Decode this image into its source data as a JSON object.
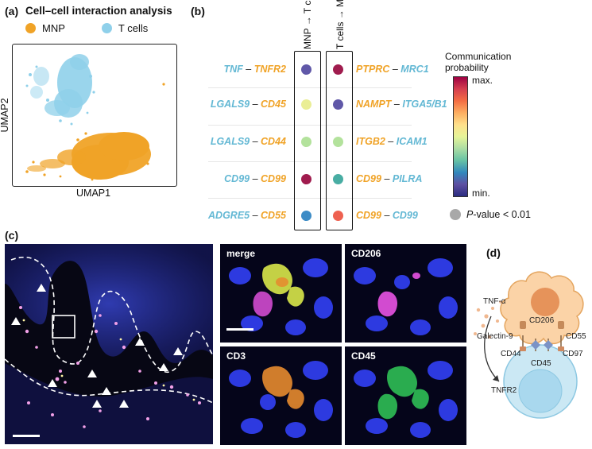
{
  "panel_a": {
    "letter": "(a)",
    "title": "Cell–cell interaction analysis",
    "legend": [
      {
        "label": "MNP",
        "color": "#f0a327"
      },
      {
        "label": "T cells",
        "color": "#8fd0ea"
      }
    ],
    "xlabel": "UMAP1",
    "ylabel": "UMAP2"
  },
  "panel_b": {
    "letter": "(b)",
    "columns": [
      "MNP → T cells",
      "T cells → MNP"
    ],
    "rows_left": [
      {
        "ligand": "TNF",
        "receptor": "TNFR2"
      },
      {
        "ligand": "LGALS9",
        "receptor": "CD45"
      },
      {
        "ligand": "LGALS9",
        "receptor": "CD44"
      },
      {
        "ligand": "CD99",
        "receptor": "CD99"
      },
      {
        "ligand": "ADGRE5",
        "receptor": "CD55"
      }
    ],
    "rows_right": [
      {
        "ligand": "PTPRC",
        "receptor": "MRC1"
      },
      {
        "ligand": "NAMPT",
        "receptor": "ITGA5/B1"
      },
      {
        "ligand": "ITGB2",
        "receptor": "ICAM1"
      },
      {
        "ligand": "CD99",
        "receptor": "PILRA"
      },
      {
        "ligand": "CD99",
        "receptor": "CD99"
      }
    ],
    "dots_col1": [
      "#6058a8",
      "#eaee96",
      "#b3e29c",
      "#a01c4e",
      "#3d8cc6"
    ],
    "dots_col2": [
      "#a01c4e",
      "#6058a8",
      "#b3e29c",
      "#48ada3",
      "#ee6150"
    ],
    "colorbar_title": "Communication probability",
    "colorbar_max": "max.",
    "colorbar_min": "min.",
    "pvalue_label_italic": "P",
    "pvalue_label_rest": "-value < 0.01"
  },
  "panel_c": {
    "letter": "(c)",
    "tiles": [
      "merge",
      "CD206",
      "CD3",
      "CD45"
    ]
  },
  "panel_d": {
    "letter": "(d)",
    "labels": {
      "tnf": "TNF-α",
      "cd206": "CD206",
      "galectin": "Galectin-9",
      "cd55": "CD55",
      "cd44": "CD44",
      "cd97": "CD97",
      "cd45": "CD45",
      "tnfr2": "TNFR2"
    }
  }
}
